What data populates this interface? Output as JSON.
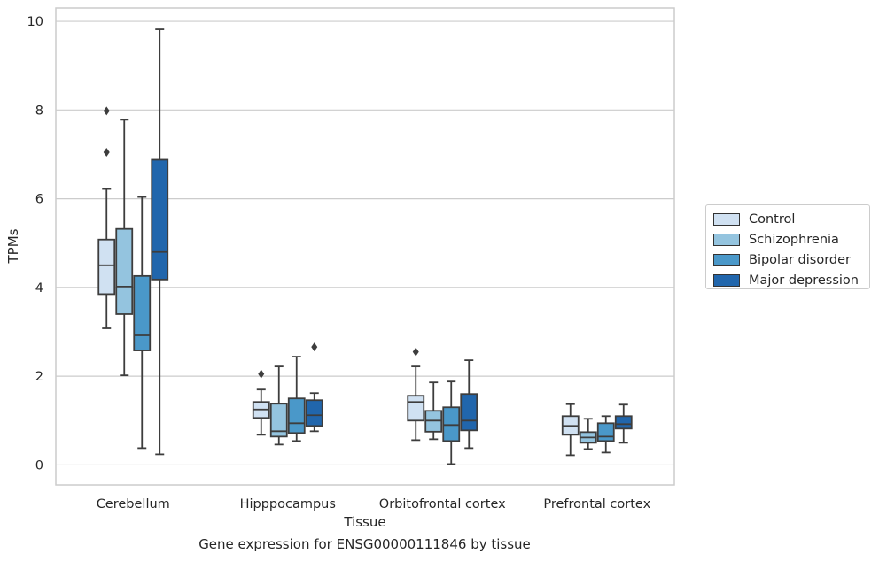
{
  "chart_data": {
    "type": "boxplot",
    "caption": "Gene expression for ENSG00000111846 by tissue",
    "xlabel": "Tissue",
    "ylabel": "TPMs",
    "ylim": [
      -0.45,
      10.3
    ],
    "yticks": [
      0,
      2,
      4,
      6,
      8,
      10
    ],
    "grid": "horizontal",
    "legend_position": "right",
    "categories": [
      "Cerebellum",
      "Hipppocampus",
      "Orbitofrontal cortex",
      "Prefrontal cortex"
    ],
    "series": [
      {
        "name": "Control",
        "color": "#d0e1f2",
        "boxes": [
          {
            "wl": 3.08,
            "q1": 3.85,
            "med": 4.5,
            "q3": 5.08,
            "wh": 6.22,
            "outliers": [
              7.05,
              7.98
            ]
          },
          {
            "wl": 0.68,
            "q1": 1.06,
            "med": 1.25,
            "q3": 1.42,
            "wh": 1.7,
            "outliers": [
              2.05
            ]
          },
          {
            "wl": 0.56,
            "q1": 1.0,
            "med": 1.42,
            "q3": 1.56,
            "wh": 2.22,
            "outliers": [
              2.55
            ]
          },
          {
            "wl": 0.22,
            "q1": 0.68,
            "med": 0.88,
            "q3": 1.1,
            "wh": 1.37,
            "outliers": []
          }
        ]
      },
      {
        "name": "Schizophrenia",
        "color": "#94c4df",
        "boxes": [
          {
            "wl": 2.02,
            "q1": 3.4,
            "med": 4.02,
            "q3": 5.32,
            "wh": 7.78,
            "outliers": []
          },
          {
            "wl": 0.46,
            "q1": 0.64,
            "med": 0.76,
            "q3": 1.38,
            "wh": 2.22,
            "outliers": []
          },
          {
            "wl": 0.58,
            "q1": 0.75,
            "med": 1.0,
            "q3": 1.22,
            "wh": 1.86,
            "outliers": []
          },
          {
            "wl": 0.36,
            "q1": 0.5,
            "med": 0.62,
            "q3": 0.74,
            "wh": 1.04,
            "outliers": []
          }
        ]
      },
      {
        "name": "Bipolar disorder",
        "color": "#4a98c9",
        "boxes": [
          {
            "wl": 0.38,
            "q1": 2.58,
            "med": 2.92,
            "q3": 4.26,
            "wh": 6.04,
            "outliers": []
          },
          {
            "wl": 0.54,
            "q1": 0.72,
            "med": 0.94,
            "q3": 1.5,
            "wh": 2.44,
            "outliers": []
          },
          {
            "wl": 0.02,
            "q1": 0.54,
            "med": 0.9,
            "q3": 1.3,
            "wh": 1.88,
            "outliers": []
          },
          {
            "wl": 0.28,
            "q1": 0.54,
            "med": 0.64,
            "q3": 0.94,
            "wh": 1.1,
            "outliers": []
          }
        ]
      },
      {
        "name": "Major depression",
        "color": "#2166ac",
        "boxes": [
          {
            "wl": 0.24,
            "q1": 4.18,
            "med": 4.8,
            "q3": 6.88,
            "wh": 9.82,
            "outliers": []
          },
          {
            "wl": 0.76,
            "q1": 0.88,
            "med": 1.12,
            "q3": 1.46,
            "wh": 1.62,
            "outliers": [
              2.66
            ]
          },
          {
            "wl": 0.38,
            "q1": 0.78,
            "med": 1.0,
            "q3": 1.6,
            "wh": 2.36,
            "outliers": []
          },
          {
            "wl": 0.5,
            "q1": 0.82,
            "med": 0.92,
            "q3": 1.1,
            "wh": 1.36,
            "outliers": []
          }
        ]
      }
    ]
  }
}
